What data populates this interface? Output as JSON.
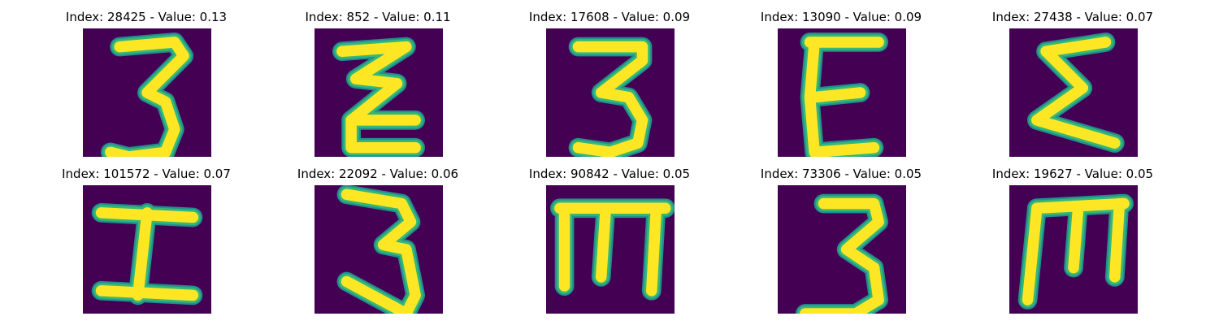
{
  "colors": {
    "background": "#440154",
    "mid": "#21908c",
    "teal": "#35b779",
    "foreground": "#fde725"
  },
  "panels": [
    {
      "title": "Index: 28425 - Value: 0.13",
      "glyph": "3"
    },
    {
      "title": "Index: 852 - Value: 0.11",
      "glyph": "zigzag"
    },
    {
      "title": "Index: 17608 - Value: 0.09",
      "glyph": "3-bold"
    },
    {
      "title": "Index: 13090 - Value: 0.09",
      "glyph": "E"
    },
    {
      "title": "Index: 27438 - Value: 0.07",
      "glyph": "sigma"
    },
    {
      "title": "Index: 101572 - Value: 0.07",
      "glyph": "I-slant"
    },
    {
      "title": "Index: 22092 - Value: 0.06",
      "glyph": "3-tall"
    },
    {
      "title": "Index: 90842 - Value: 0.05",
      "glyph": "m"
    },
    {
      "title": "Index: 73306 - Value: 0.05",
      "glyph": "3-narrow"
    },
    {
      "title": "Index: 19627 - Value: 0.05",
      "glyph": "M-bold"
    }
  ]
}
